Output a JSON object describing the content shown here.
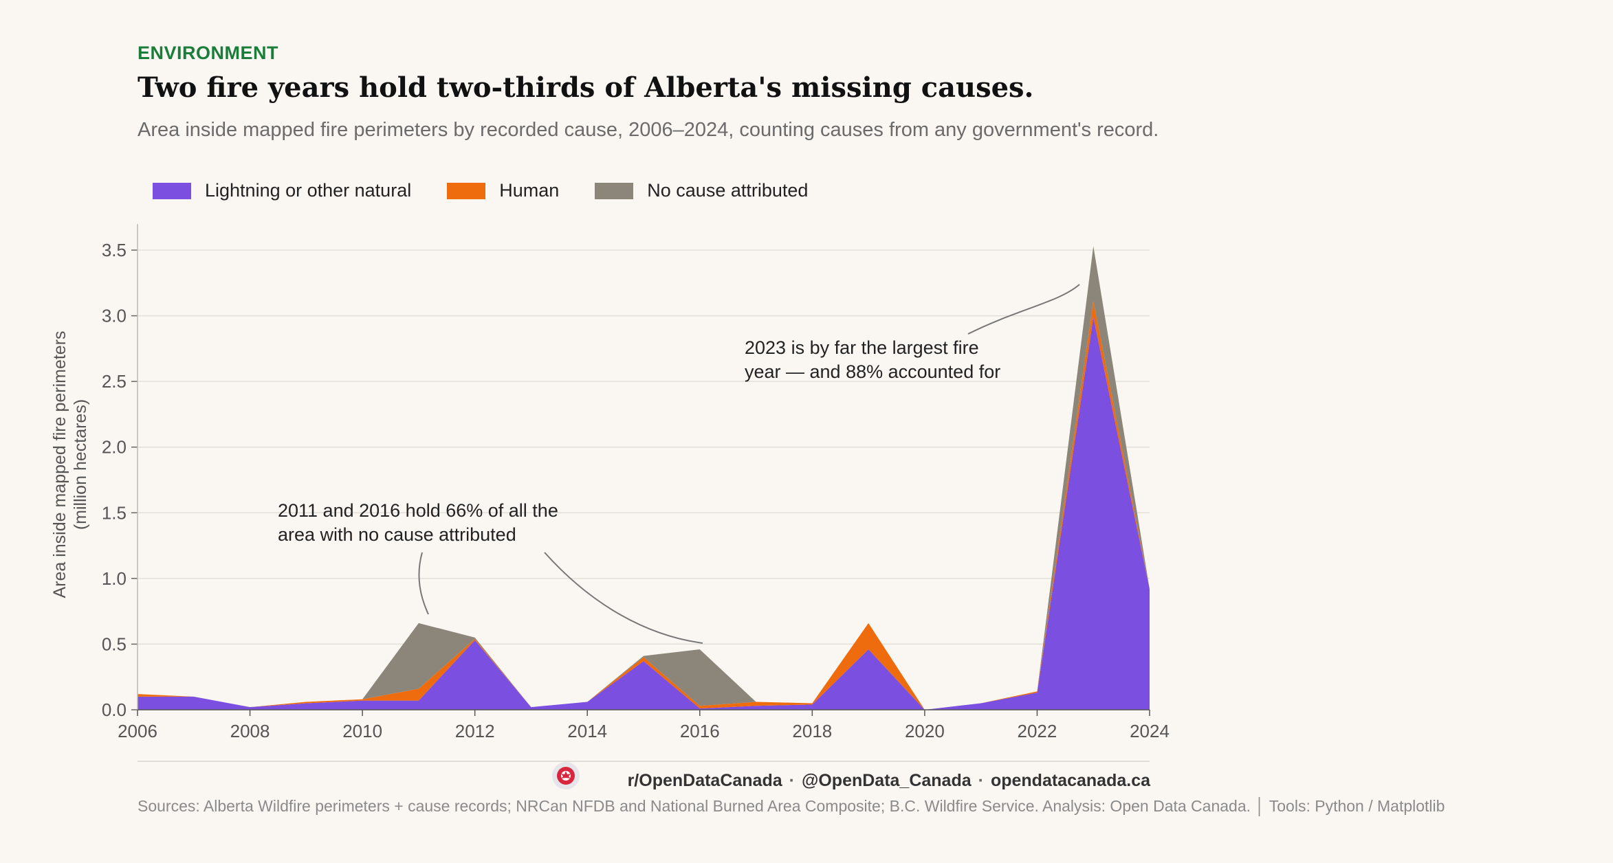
{
  "header": {
    "kicker": "ENVIRONMENT",
    "title": "Two fire years hold two-thirds of Alberta's missing causes.",
    "subtitle": "Area inside mapped fire perimeters by recorded cause, 2006–2024, counting causes from any government's record."
  },
  "colors": {
    "natural": "#7b4fe0",
    "human": "#ee6c0e",
    "unattributed": "#8c867a",
    "kicker": "#1b7d3a",
    "background": "#faf7f2"
  },
  "chart_data": {
    "type": "area",
    "stacked": true,
    "x": [
      2006,
      2007,
      2008,
      2009,
      2010,
      2011,
      2012,
      2013,
      2014,
      2015,
      2016,
      2017,
      2018,
      2019,
      2020,
      2021,
      2022,
      2023,
      2024
    ],
    "series": [
      {
        "name": "Lightning or other natural",
        "color": "#7b4fe0",
        "values": [
          0.1,
          0.1,
          0.02,
          0.05,
          0.07,
          0.07,
          0.53,
          0.02,
          0.06,
          0.37,
          0.01,
          0.03,
          0.04,
          0.46,
          0.0,
          0.05,
          0.13,
          2.99,
          0.92
        ]
      },
      {
        "name": "Human",
        "color": "#ee6c0e",
        "values": [
          0.02,
          0.0,
          0.0,
          0.01,
          0.01,
          0.09,
          0.01,
          0.0,
          0.0,
          0.03,
          0.02,
          0.03,
          0.01,
          0.2,
          0.0,
          0.0,
          0.01,
          0.12,
          0.0
        ]
      },
      {
        "name": "No cause attributed",
        "color": "#8c867a",
        "values": [
          0.0,
          0.0,
          0.0,
          0.0,
          0.0,
          0.5,
          0.01,
          0.0,
          0.0,
          0.01,
          0.43,
          0.0,
          0.0,
          0.0,
          0.0,
          0.0,
          0.0,
          0.42,
          0.0
        ]
      }
    ],
    "xlabel": "",
    "ylabel": "Area inside mapped fire perimeters\n(million hectares)",
    "ylim": [
      0,
      3.7
    ],
    "xlim": [
      2006,
      2024
    ],
    "yticks": [
      "0.0",
      "0.5",
      "1.0",
      "1.5",
      "2.0",
      "2.5",
      "3.0",
      "3.5"
    ],
    "xticks": [
      "2006",
      "2008",
      "2010",
      "2012",
      "2014",
      "2016",
      "2018",
      "2020",
      "2022",
      "2024"
    ],
    "grid": "horizontal",
    "legend_position": "top-left",
    "annotations": [
      "2011 and 2016 hold 66% of all the\narea with no cause attributed",
      "2023 is by far the largest fire\nyear — and 88% accounted for"
    ]
  },
  "footer": {
    "reddit": "r/OpenDataCanada",
    "twitter": "@OpenData_Canada",
    "site": "opendatacanada.ca",
    "sources": "Sources: Alberta Wildfire perimeters + cause records; NRCan NFDB and National Burned Area Composite; B.C. Wildfire Service. Analysis: Open Data Canada.  │  Tools: Python / Matplotlib"
  }
}
